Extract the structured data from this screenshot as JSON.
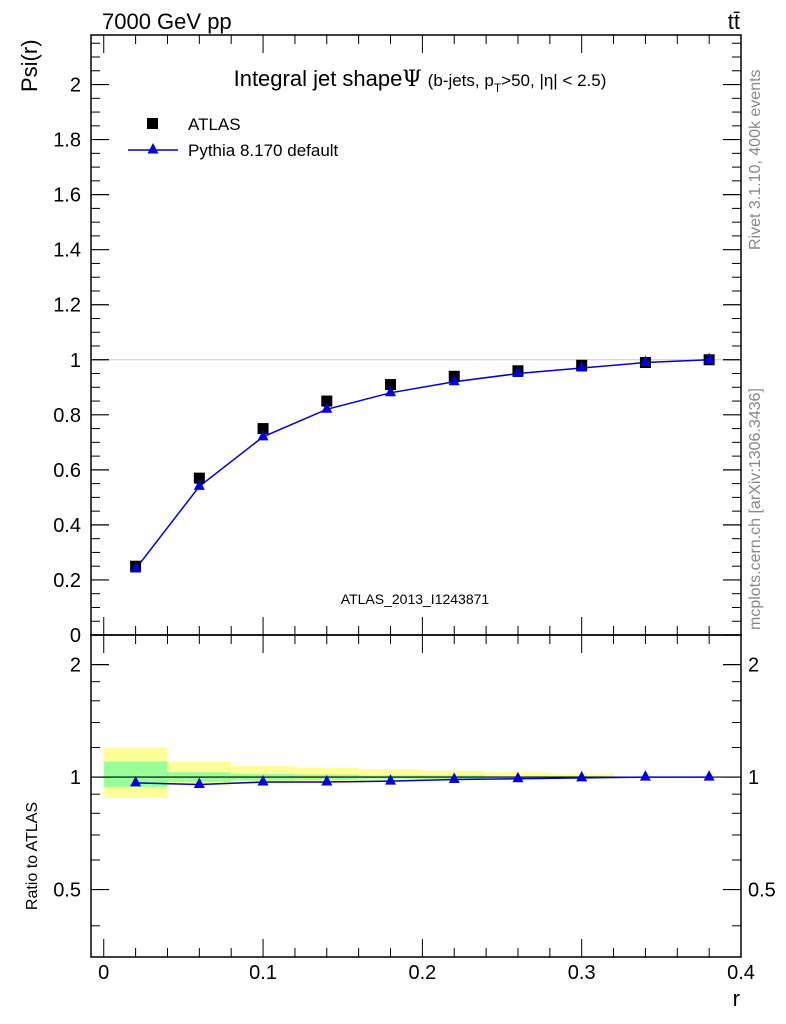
{
  "header": {
    "left": "7000 GeV pp",
    "right": "tt̄"
  },
  "side_notes": {
    "rivet": "Rivet 3.1.10,  400k events",
    "mcplots": "mcplots.cern.ch [arXiv:1306.3436]"
  },
  "title": {
    "main": "Integral jet shape",
    "psi": "Ψ",
    "cond_a": "(b-jets, p",
    "cond_sub": "T",
    "cond_b": ">50, |η| < 2.5)"
  },
  "watermark": "ATLAS_2013_I1243871",
  "chart_data": [
    {
      "type": "line",
      "ylabel": "Psi(r)",
      "xlim": [
        -0.008,
        0.4
      ],
      "ylim": [
        0,
        2.18
      ],
      "y_ticks": [
        0,
        0.2,
        0.4,
        0.6,
        0.8,
        1,
        1.2,
        1.4,
        1.6,
        1.8,
        2
      ],
      "y_tick_labels": [
        "0",
        "0.2",
        "0.4",
        "0.6",
        "0.8",
        "1",
        "1.2",
        "1.4",
        "1.6",
        "1.8",
        "2"
      ],
      "legend": "top-left",
      "series": [
        {
          "name": "ATLAS",
          "marker": "square",
          "color": "#000000",
          "x": [
            0.02,
            0.06,
            0.1,
            0.14,
            0.18,
            0.22,
            0.26,
            0.3,
            0.34,
            0.38
          ],
          "y": [
            0.25,
            0.57,
            0.75,
            0.85,
            0.91,
            0.94,
            0.96,
            0.98,
            0.99,
            1.0
          ]
        },
        {
          "name": "Pythia 8.170 default",
          "marker": "triangle",
          "color": "#0000dd",
          "x": [
            0.02,
            0.06,
            0.1,
            0.14,
            0.18,
            0.22,
            0.26,
            0.3,
            0.34,
            0.38
          ],
          "y": [
            0.24,
            0.54,
            0.72,
            0.82,
            0.88,
            0.92,
            0.95,
            0.97,
            0.99,
            1.0
          ]
        }
      ]
    },
    {
      "type": "line",
      "ylabel": "Ratio to ATLAS",
      "xlabel": "r",
      "xlim": [
        -0.008,
        0.4
      ],
      "ylim": [
        0.33,
        2.4
      ],
      "y_scale": "log",
      "y_ticks": [
        0.5,
        1,
        2
      ],
      "y_tick_labels": [
        "0.5",
        "1",
        "2"
      ],
      "x_ticks": [
        0,
        0.1,
        0.2,
        0.3,
        0.4
      ],
      "x_tick_labels": [
        "0",
        "0.1",
        "0.2",
        "0.3",
        "0.4"
      ],
      "bands": {
        "outer_color": "#ffff99",
        "inner_color": "#99ff99",
        "bins": [
          {
            "x0": 0.0,
            "x1": 0.04,
            "outer": [
              0.88,
              1.2
            ],
            "inner": [
              0.94,
              1.1
            ]
          },
          {
            "x0": 0.04,
            "x1": 0.08,
            "outer": [
              0.95,
              1.1
            ],
            "inner": [
              0.97,
              1.03
            ]
          },
          {
            "x0": 0.08,
            "x1": 0.12,
            "outer": [
              0.96,
              1.07
            ],
            "inner": [
              0.98,
              1.02
            ]
          },
          {
            "x0": 0.12,
            "x1": 0.16,
            "outer": [
              0.97,
              1.06
            ],
            "inner": [
              0.985,
              1.015
            ]
          },
          {
            "x0": 0.16,
            "x1": 0.2,
            "outer": [
              0.975,
              1.05
            ],
            "inner": [
              0.99,
              1.01
            ]
          },
          {
            "x0": 0.2,
            "x1": 0.24,
            "outer": [
              0.98,
              1.04
            ],
            "inner": [
              0.99,
              1.01
            ]
          },
          {
            "x0": 0.24,
            "x1": 0.28,
            "outer": [
              0.985,
              1.03
            ],
            "inner": [
              0.995,
              1.005
            ]
          },
          {
            "x0": 0.28,
            "x1": 0.32,
            "outer": [
              0.99,
              1.02
            ],
            "inner": [
              0.995,
              1.005
            ]
          }
        ]
      },
      "series": [
        {
          "name": "Pythia 8.170 default",
          "marker": "triangle",
          "color": "#0000dd",
          "x": [
            0.02,
            0.06,
            0.1,
            0.14,
            0.18,
            0.22,
            0.26,
            0.3,
            0.34,
            0.38
          ],
          "y": [
            0.965,
            0.955,
            0.97,
            0.97,
            0.975,
            0.985,
            0.99,
            0.995,
            1.0,
            1.0
          ]
        }
      ]
    }
  ]
}
